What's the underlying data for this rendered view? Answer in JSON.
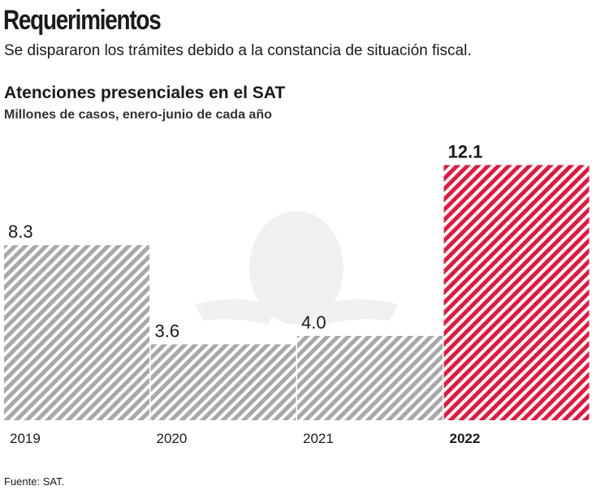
{
  "header": {
    "title": "Requerimientos",
    "subtitle": "Se dispararon los trámites debido a la constancia de situación fiscal."
  },
  "chart_data": {
    "type": "bar",
    "title": "Atenciones presenciales en el SAT",
    "subtitle": "Millones de casos, enero-junio de cada año",
    "categories": [
      "2019",
      "2020",
      "2021",
      "2022"
    ],
    "values": [
      8.3,
      3.6,
      4.0,
      12.1
    ],
    "value_labels": [
      "8.3",
      "3.6",
      "4.0",
      "12.1"
    ],
    "highlight": "2022",
    "colors": {
      "default": "#a8a8a8",
      "highlight": "#e0193f"
    },
    "pattern": "diagonal-hatch",
    "watermark": "SAT logo",
    "grid": false
  },
  "footer": {
    "source": "Fuente: SAT."
  }
}
